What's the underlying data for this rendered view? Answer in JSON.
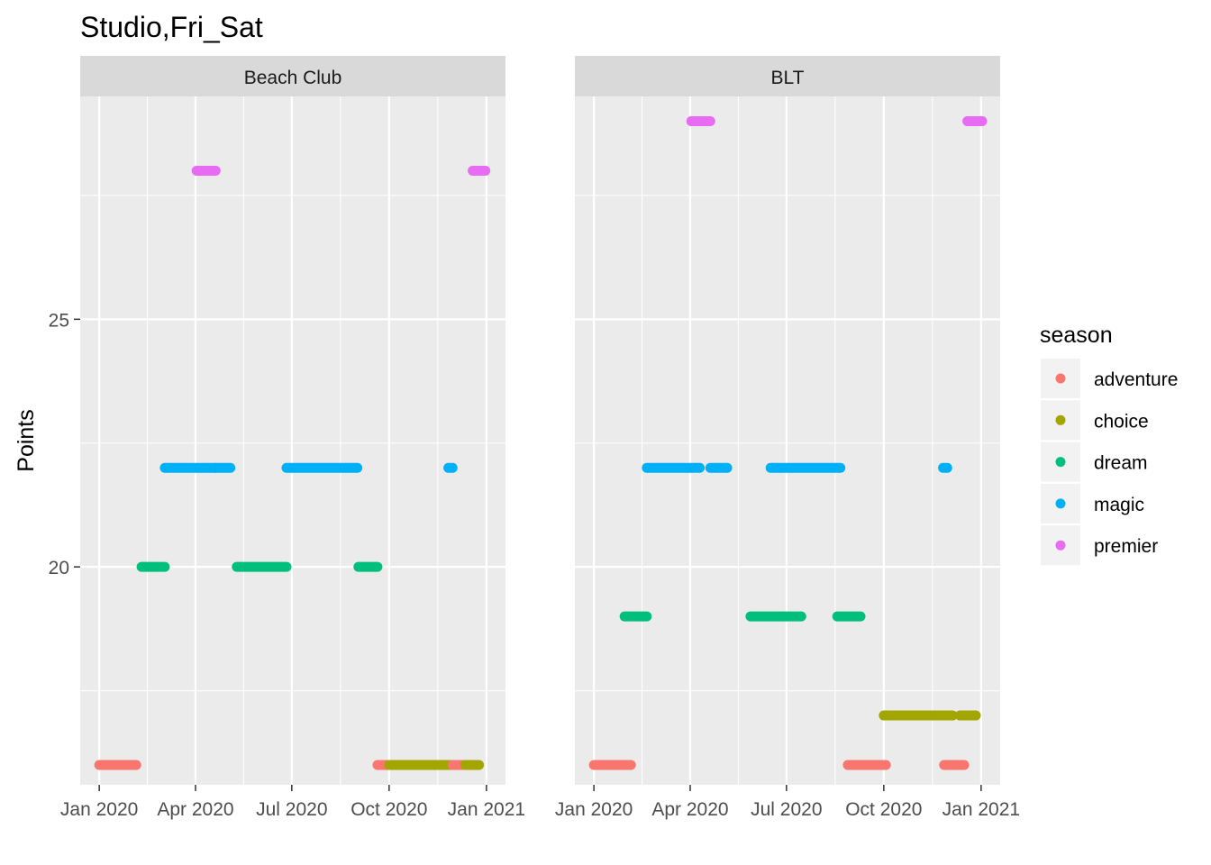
{
  "chart_data": {
    "type": "scatter",
    "title": "Studio,Fri_Sat",
    "ylabel": "Points",
    "xlabel": "",
    "y_ticks": [
      20,
      25
    ],
    "y_tick_labels": [
      "20",
      "25"
    ],
    "ylim": [
      15.6,
      29.5
    ],
    "xlim": [
      "2019-12-14",
      "2021-01-19"
    ],
    "x_ticks": [
      "2020-01-01",
      "2020-04-01",
      "2020-07-01",
      "2020-10-01",
      "2021-01-01"
    ],
    "x_tick_labels": [
      "Jan 2020",
      "Apr 2020",
      "Jul 2020",
      "Oct 2020",
      "Jan 2021"
    ],
    "grid": true,
    "legend": {
      "title": "season",
      "placement": "right",
      "entries": [
        {
          "name": "adventure",
          "color": "#F8766D"
        },
        {
          "name": "choice",
          "color": "#A3A500"
        },
        {
          "name": "dream",
          "color": "#00BF7D"
        },
        {
          "name": "magic",
          "color": "#00B0F6"
        },
        {
          "name": "premier",
          "color": "#E76BF3"
        }
      ]
    },
    "panels": [
      {
        "name": "Beach Club",
        "segments": [
          {
            "season": "adventure",
            "start": "2020-01-01",
            "end": "2020-02-05",
            "y": 16
          },
          {
            "season": "dream",
            "start": "2020-02-10",
            "end": "2020-03-03",
            "y": 20
          },
          {
            "season": "magic",
            "start": "2020-03-03",
            "end": "2020-04-20",
            "y": 22
          },
          {
            "season": "premier",
            "start": "2020-04-02",
            "end": "2020-04-20",
            "y": 28
          },
          {
            "season": "magic",
            "start": "2020-04-20",
            "end": "2020-05-04",
            "y": 22
          },
          {
            "season": "dream",
            "start": "2020-05-10",
            "end": "2020-06-26",
            "y": 20
          },
          {
            "season": "magic",
            "start": "2020-06-26",
            "end": "2020-09-01",
            "y": 22
          },
          {
            "season": "dream",
            "start": "2020-09-02",
            "end": "2020-09-20",
            "y": 20
          },
          {
            "season": "adventure",
            "start": "2020-09-20",
            "end": "2020-10-01",
            "y": 16
          },
          {
            "season": "choice",
            "start": "2020-10-01",
            "end": "2020-11-30",
            "y": 16
          },
          {
            "season": "magic",
            "start": "2020-11-26",
            "end": "2020-11-30",
            "y": 22
          },
          {
            "season": "adventure",
            "start": "2020-11-30",
            "end": "2020-12-12",
            "y": 16
          },
          {
            "season": "choice",
            "start": "2020-12-12",
            "end": "2020-12-25",
            "y": 16
          },
          {
            "season": "premier",
            "start": "2020-12-19",
            "end": "2020-12-31",
            "y": 28
          }
        ]
      },
      {
        "name": "BLT",
        "segments": [
          {
            "season": "adventure",
            "start": "2020-01-01",
            "end": "2020-02-05",
            "y": 16
          },
          {
            "season": "dream",
            "start": "2020-01-30",
            "end": "2020-02-20",
            "y": 19
          },
          {
            "season": "magic",
            "start": "2020-02-20",
            "end": "2020-04-10",
            "y": 22
          },
          {
            "season": "premier",
            "start": "2020-04-02",
            "end": "2020-04-20",
            "y": 29
          },
          {
            "season": "magic",
            "start": "2020-04-20",
            "end": "2020-05-06",
            "y": 22
          },
          {
            "season": "dream",
            "start": "2020-05-28",
            "end": "2020-07-15",
            "y": 19
          },
          {
            "season": "magic",
            "start": "2020-06-16",
            "end": "2020-08-21",
            "y": 22
          },
          {
            "season": "dream",
            "start": "2020-08-18",
            "end": "2020-09-09",
            "y": 19
          },
          {
            "season": "adventure",
            "start": "2020-08-28",
            "end": "2020-10-03",
            "y": 16
          },
          {
            "season": "choice",
            "start": "2020-10-01",
            "end": "2020-12-05",
            "y": 17
          },
          {
            "season": "magic",
            "start": "2020-11-26",
            "end": "2020-11-30",
            "y": 22
          },
          {
            "season": "adventure",
            "start": "2020-11-27",
            "end": "2020-12-16",
            "y": 16
          },
          {
            "season": "choice",
            "start": "2020-12-12",
            "end": "2020-12-27",
            "y": 17
          },
          {
            "season": "premier",
            "start": "2020-12-19",
            "end": "2021-01-02",
            "y": 29
          }
        ]
      }
    ]
  }
}
